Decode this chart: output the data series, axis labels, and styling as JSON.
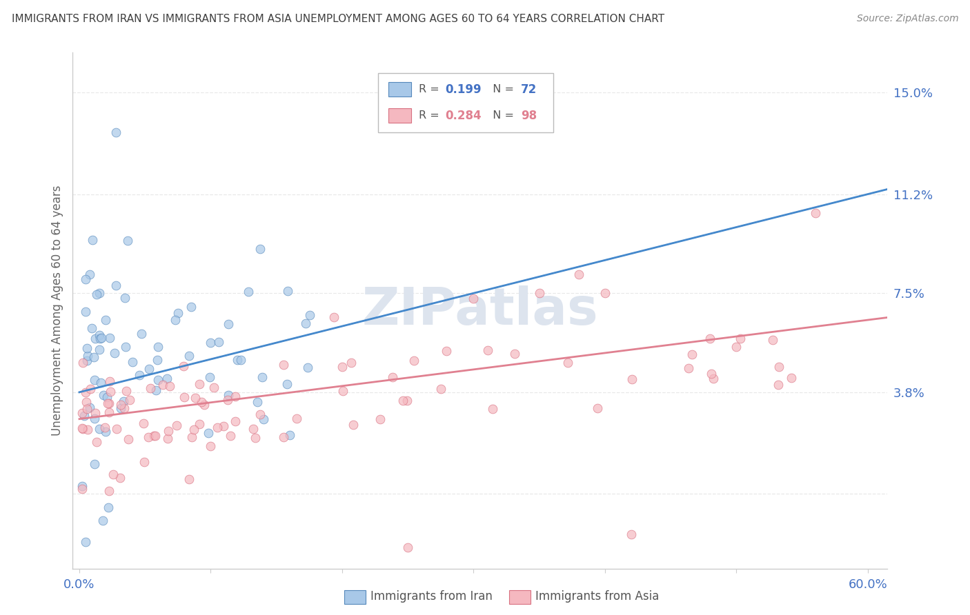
{
  "title": "IMMIGRANTS FROM IRAN VS IMMIGRANTS FROM ASIA UNEMPLOYMENT AMONG AGES 60 TO 64 YEARS CORRELATION CHART",
  "source": "Source: ZipAtlas.com",
  "ylabel": "Unemployment Among Ages 60 to 64 years",
  "xlim": [
    -0.005,
    0.615
  ],
  "ylim": [
    -0.028,
    0.165
  ],
  "ytick_vals": [
    0.0,
    0.038,
    0.075,
    0.112,
    0.15
  ],
  "ytick_labels": [
    "",
    "3.8%",
    "7.5%",
    "11.2%",
    "15.0%"
  ],
  "xtick_vals": [
    0.0,
    0.1,
    0.2,
    0.3,
    0.4,
    0.5,
    0.6
  ],
  "bottom_xtick_labels": [
    "0.0%",
    "",
    "",
    "",
    "",
    "",
    "60.0%"
  ],
  "color_iran_fill": "#a8c8e8",
  "color_iran_edge": "#5588bb",
  "color_asia_fill": "#f5b8c0",
  "color_asia_edge": "#d87080",
  "color_iran_line": "#4488cc",
  "color_iran_dashed": "#aabbcc",
  "color_asia_line": "#e08090",
  "title_color": "#404040",
  "source_color": "#888888",
  "tick_color": "#4472c4",
  "ylabel_color": "#666666",
  "watermark_color": "#dde4ee",
  "grid_color": "#e8e8e8",
  "background": "#ffffff",
  "legend_R_iran": "0.199",
  "legend_N_iran": "72",
  "legend_R_asia": "0.284",
  "legend_N_asia": "98",
  "legend_R_color_iran": "#4472c4",
  "legend_N_color_iran": "#4472c4",
  "legend_R_color_asia": "#e08090",
  "legend_N_color_asia": "#e08090",
  "iran_seed": 7,
  "asia_seed": 13,
  "n_iran": 72,
  "n_asia": 98
}
